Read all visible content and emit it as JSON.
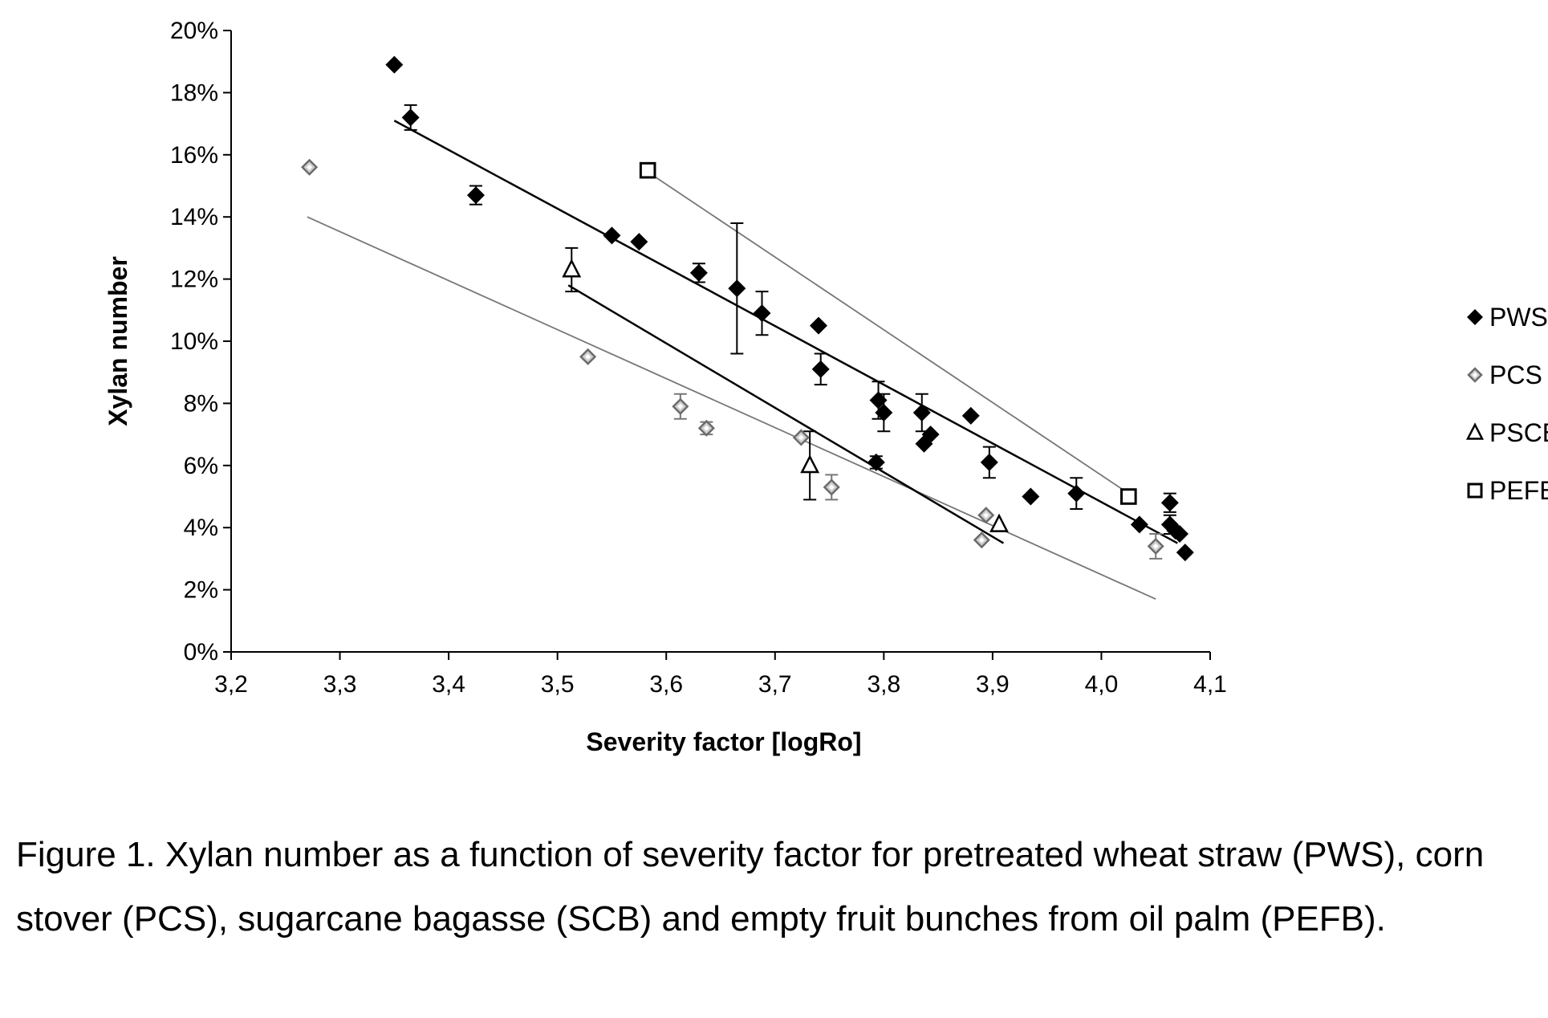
{
  "chart_data": {
    "type": "scatter",
    "xlabel": "Severity factor [logRo]",
    "ylabel": "Xylan number",
    "xlim": [
      3.2,
      4.1
    ],
    "ylim": [
      0,
      20
    ],
    "x_ticks": [
      "3,2",
      "3,3",
      "3,4",
      "3,5",
      "3,6",
      "3,7",
      "3,8",
      "3,9",
      "4,0",
      "4,1"
    ],
    "y_ticks": [
      "0%",
      "2%",
      "4%",
      "6%",
      "8%",
      "10%",
      "12%",
      "14%",
      "16%",
      "18%",
      "20%"
    ],
    "y_unit": "%",
    "legend_position": "right",
    "grid": false,
    "series": [
      {
        "name": "PWS",
        "marker": "filled-diamond",
        "color": "#000000",
        "points": [
          {
            "x": 3.35,
            "y": 18.9
          },
          {
            "x": 3.365,
            "y": 17.2,
            "err": 0.4
          },
          {
            "x": 3.425,
            "y": 14.7,
            "err": 0.3
          },
          {
            "x": 3.55,
            "y": 13.4
          },
          {
            "x": 3.575,
            "y": 13.2
          },
          {
            "x": 3.63,
            "y": 12.2,
            "err": 0.3
          },
          {
            "x": 3.665,
            "y": 11.7,
            "err": 2.1
          },
          {
            "x": 3.688,
            "y": 10.9,
            "err": 0.7
          },
          {
            "x": 3.74,
            "y": 10.5
          },
          {
            "x": 3.742,
            "y": 9.1,
            "err": 0.5
          },
          {
            "x": 3.795,
            "y": 8.1,
            "err": 0.6
          },
          {
            "x": 3.8,
            "y": 7.7,
            "err": 0.6
          },
          {
            "x": 3.835,
            "y": 7.7,
            "err": 0.6
          },
          {
            "x": 3.837,
            "y": 6.7
          },
          {
            "x": 3.843,
            "y": 7.0
          },
          {
            "x": 3.793,
            "y": 6.1,
            "err": 0.2
          },
          {
            "x": 3.88,
            "y": 7.6
          },
          {
            "x": 3.897,
            "y": 6.1,
            "err": 0.5
          },
          {
            "x": 3.935,
            "y": 5.0
          },
          {
            "x": 3.977,
            "y": 5.1,
            "err": 0.5
          },
          {
            "x": 4.035,
            "y": 4.1
          },
          {
            "x": 4.063,
            "y": 4.8,
            "err": 0.3
          },
          {
            "x": 4.063,
            "y": 4.1,
            "err": 0.3
          },
          {
            "x": 4.068,
            "y": 3.9
          },
          {
            "x": 4.072,
            "y": 3.8
          },
          {
            "x": 4.077,
            "y": 3.2
          }
        ],
        "trendline": {
          "x": [
            3.35,
            4.07
          ],
          "y": [
            17.1,
            3.5
          ]
        }
      },
      {
        "name": "PCS",
        "marker": "hatched-diamond",
        "color": "#8a8a8a",
        "points": [
          {
            "x": 3.272,
            "y": 15.6
          },
          {
            "x": 3.528,
            "y": 9.5
          },
          {
            "x": 3.613,
            "y": 7.9,
            "err": 0.4
          },
          {
            "x": 3.637,
            "y": 7.2,
            "err": 0.2
          },
          {
            "x": 3.724,
            "y": 6.9
          },
          {
            "x": 3.752,
            "y": 5.3,
            "err": 0.4
          },
          {
            "x": 3.89,
            "y": 3.6
          },
          {
            "x": 3.894,
            "y": 4.4
          },
          {
            "x": 4.05,
            "y": 3.4,
            "err": 0.4
          }
        ],
        "trendline": {
          "x": [
            3.27,
            4.05
          ],
          "y": [
            14.0,
            1.7
          ]
        }
      },
      {
        "name": "PSCB",
        "marker": "open-triangle",
        "color": "#000000",
        "points": [
          {
            "x": 3.513,
            "y": 12.3,
            "err": 0.7
          },
          {
            "x": 3.732,
            "y": 6.0,
            "err": 1.1
          },
          {
            "x": 3.906,
            "y": 4.1
          }
        ],
        "trendline": {
          "x": [
            3.51,
            3.91
          ],
          "y": [
            11.8,
            3.5
          ]
        }
      },
      {
        "name": "PEFB",
        "marker": "open-square",
        "color": "#000000",
        "points": [
          {
            "x": 3.583,
            "y": 15.5
          },
          {
            "x": 4.025,
            "y": 5.0
          }
        ],
        "trendline": {
          "x": [
            3.585,
            4.025
          ],
          "y": [
            15.4,
            5.1
          ]
        }
      }
    ]
  },
  "caption": "Figure 1. Xylan number as a function of severity factor for pretreated wheat straw (PWS), corn stover (PCS), sugarcane bagasse (SCB) and empty fruit bunches from oil palm (PEFB)."
}
